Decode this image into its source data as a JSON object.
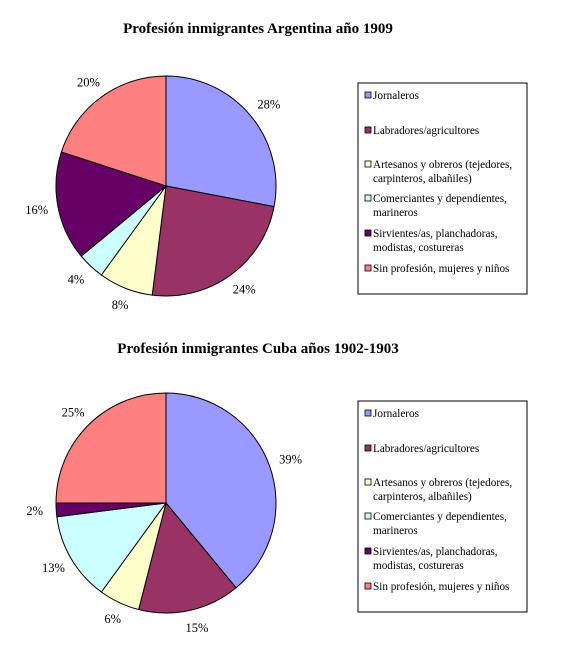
{
  "chart_data": [
    {
      "type": "pie",
      "title": "Profesión inmigrantes Argentina año 1909",
      "categories": [
        "Jornaleros",
        "Labradores/agricultores",
        "Artesanos y obreros (tejedores, carpinteros, albañiles)",
        "Comerciantes y dependientes, marineros",
        "Sirvientes/as, planchadoras, modistas, costureras",
        "Sin profesión, mujeres y niños"
      ],
      "values": [
        28,
        24,
        8,
        4,
        16,
        20
      ],
      "value_labels": [
        "28%",
        "24%",
        "8%",
        "4%",
        "16%",
        "20%"
      ],
      "colors": [
        "#9999ff",
        "#993366",
        "#ffffcc",
        "#ccffff",
        "#660066",
        "#ff8080"
      ],
      "legend_position": "right"
    },
    {
      "type": "pie",
      "title": "Profesión inmigrantes Cuba años 1902-1903",
      "categories": [
        "Jornaleros",
        "Labradores/agricultores",
        "Artesanos y obreros (tejedores, carpinteros, albañiles)",
        "Comerciantes y dependientes, marineros",
        "Sirvientes/as, planchadoras, modistas, costureras",
        "Sin profesión, mujeres y niños"
      ],
      "values": [
        39,
        15,
        6,
        13,
        2,
        25
      ],
      "value_labels": [
        "39%",
        "15%",
        "6%",
        "13%",
        "2%",
        "25%"
      ],
      "colors": [
        "#9999ff",
        "#993366",
        "#ffffcc",
        "#ccffff",
        "#660066",
        "#ff8080"
      ],
      "legend_position": "right"
    }
  ]
}
